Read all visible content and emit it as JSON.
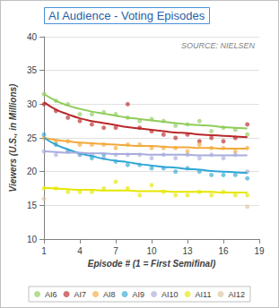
{
  "chart_data": {
    "type": "scatter",
    "title": "AI Audience - Voting Episodes",
    "annotations": [
      "SOURCE: NIELSEN"
    ],
    "x_label": "Episode # (1 = First Semifinal)",
    "y_label": "Viewers (U.S., in Millions)",
    "x": [
      1,
      2,
      3,
      4,
      5,
      6,
      7,
      8,
      9,
      10,
      11,
      12,
      13,
      14,
      15,
      16,
      17,
      18
    ],
    "xlim": [
      1,
      19
    ],
    "xticks": [
      1,
      4,
      7,
      10,
      13,
      16,
      19
    ],
    "ylim": [
      10,
      40
    ],
    "yticks": [
      10,
      15,
      20,
      25,
      30,
      35,
      40
    ],
    "grid": true,
    "legend": "bottom",
    "marker": "circle",
    "line_style": "solid",
    "series": [
      {
        "name": "AI6",
        "color": "#8fcc5a",
        "values": [
          31.5,
          30.5,
          30,
          28.5,
          28.5,
          28.8,
          28.5,
          28,
          27.5,
          27.8,
          27.5,
          26.8,
          27,
          27.5,
          26,
          26.5,
          26.2,
          25.5
        ],
        "trend": [
          31.5,
          30.5,
          29.8,
          29.3,
          28.9,
          28.6,
          28.3,
          28.0,
          27.8,
          27.6,
          27.4,
          27.2,
          27.0,
          26.9,
          26.8,
          26.6,
          26.5,
          26.4
        ]
      },
      {
        "name": "AI7",
        "color": "#b8282a",
        "values": [
          30,
          29,
          28,
          27.5,
          27,
          26.5,
          26.5,
          30,
          26.5,
          26,
          25.5,
          25,
          25.5,
          24.5,
          25,
          24.5,
          25,
          27
        ],
        "trend": [
          30.3,
          29.2,
          28.5,
          27.9,
          27.5,
          27.2,
          26.9,
          26.6,
          26.4,
          26.2,
          26.0,
          25.8,
          25.7,
          25.5,
          25.4,
          25.3,
          25.2,
          25.1
        ]
      },
      {
        "name": "AI8",
        "color": "#f2a93b",
        "values": [
          25,
          24.5,
          24.5,
          24,
          24,
          24,
          23.5,
          24,
          24,
          23.5,
          23.5,
          23.5,
          23,
          24,
          23.5,
          23.5,
          23,
          23.5
        ],
        "trend": [
          25.0,
          24.7,
          24.5,
          24.3,
          24.2,
          24.1,
          24.0,
          23.9,
          23.8,
          23.8,
          23.7,
          23.6,
          23.6,
          23.5,
          23.5,
          23.4,
          23.4,
          23.4
        ]
      },
      {
        "name": "AI9",
        "color": "#2fa6d6",
        "values": [
          25.5,
          24,
          23,
          22.5,
          22,
          22.5,
          21.5,
          21,
          21,
          20.5,
          20.5,
          20,
          20.5,
          20,
          19.5,
          19.5,
          19.5,
          19
        ],
        "trend": [
          25.0,
          24.0,
          23.3,
          22.7,
          22.3,
          21.9,
          21.6,
          21.4,
          21.1,
          20.9,
          20.7,
          20.6,
          20.4,
          20.3,
          20.1,
          20.0,
          19.9,
          19.8
        ]
      },
      {
        "name": "AI10",
        "color": "#a8acdc",
        "values": [
          23,
          22.5,
          23,
          22.5,
          22.5,
          22,
          22.5,
          22.5,
          22.5,
          22,
          22.5,
          22,
          22.5,
          22,
          22.5,
          22,
          22.5,
          20
        ],
        "trend": [
          23.0,
          22.9,
          22.8,
          22.8,
          22.7,
          22.7,
          22.6,
          22.6,
          22.6,
          22.5,
          22.5,
          22.5,
          22.5,
          22.4,
          22.4,
          22.4,
          22.4,
          22.4
        ]
      },
      {
        "name": "AI11",
        "color": "#e6e600",
        "values": [
          17.5,
          17.5,
          17,
          17,
          17,
          17.5,
          18.5,
          17.5,
          16.5,
          18,
          17,
          16.5,
          16.5,
          17,
          16.5,
          17,
          16.5,
          16.5
        ],
        "trend": [
          17.6,
          17.5,
          17.4,
          17.3,
          17.3,
          17.2,
          17.2,
          17.2,
          17.1,
          17.1,
          17.1,
          17.0,
          17.0,
          17.0,
          17.0,
          16.9,
          16.9,
          16.9
        ]
      },
      {
        "name": "AI12",
        "color": "#d8c49c",
        "values": [
          16,
          null,
          null,
          null,
          null,
          null,
          null,
          null,
          null,
          null,
          null,
          null,
          null,
          null,
          null,
          null,
          null,
          14.8
        ]
      }
    ]
  }
}
